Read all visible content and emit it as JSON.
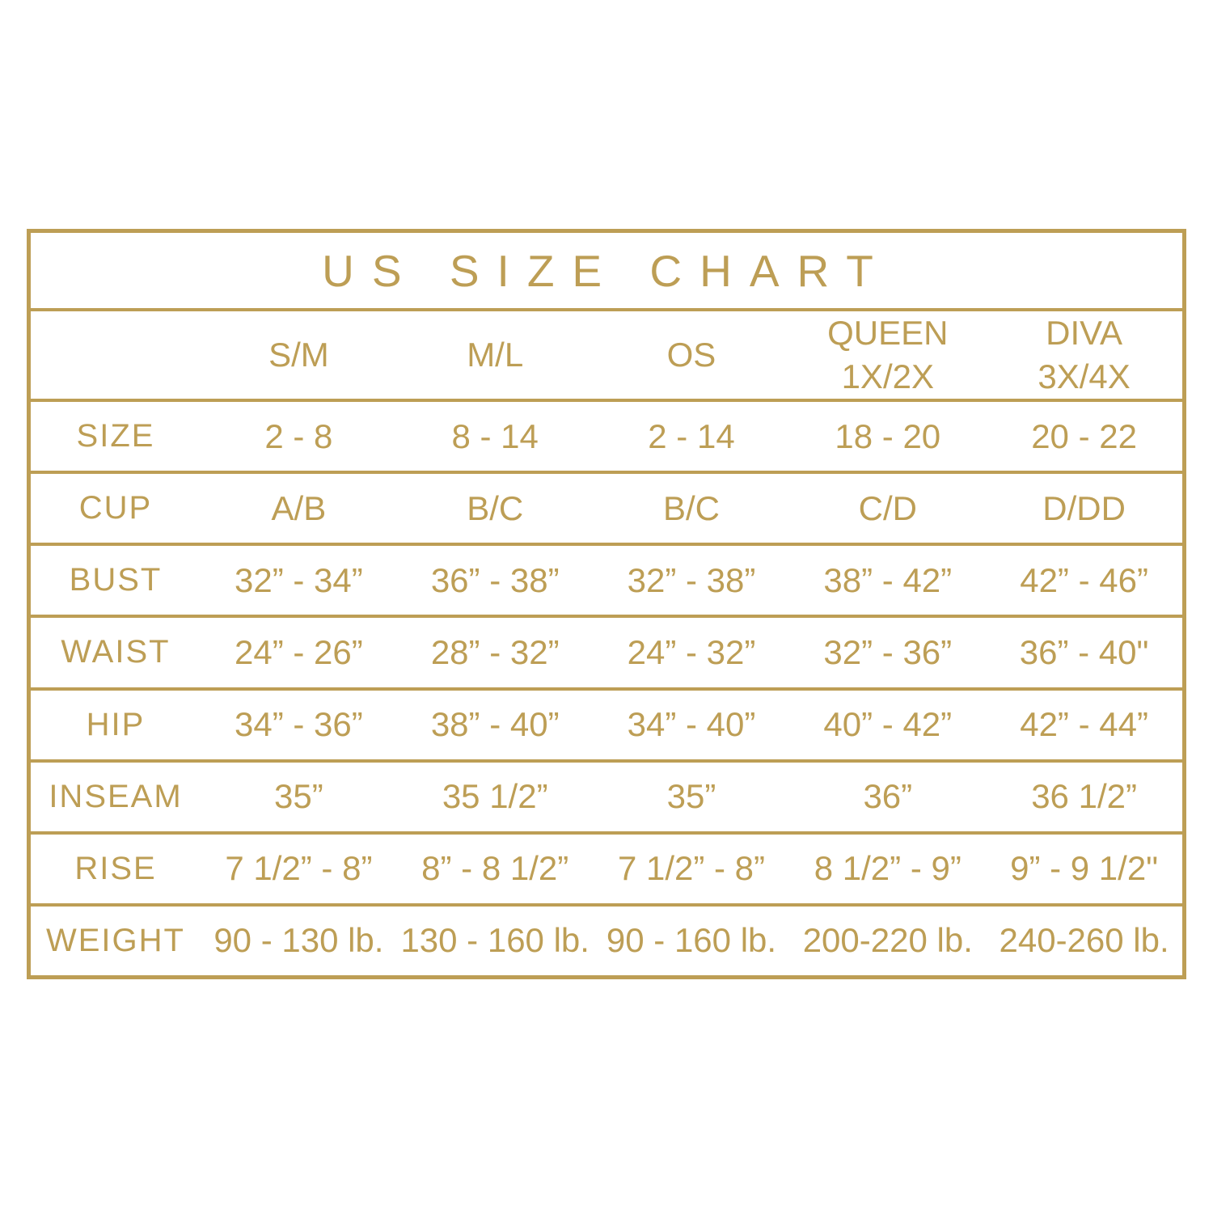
{
  "accent_color": "#BD9E55",
  "background_color": "#FFFFFF",
  "chart_data": {
    "type": "table",
    "title": "US SIZE CHART",
    "columns": [
      {
        "line1": "S/M",
        "line2": ""
      },
      {
        "line1": "M/L",
        "line2": ""
      },
      {
        "line1": "OS",
        "line2": ""
      },
      {
        "line1": "QUEEN",
        "line2": "1X/2X"
      },
      {
        "line1": "DIVA",
        "line2": "3X/4X"
      }
    ],
    "rows": [
      {
        "label": "SIZE",
        "values": [
          "2 - 8",
          "8 - 14",
          "2 - 14",
          "18 - 20",
          "20 - 22"
        ]
      },
      {
        "label": "CUP",
        "values": [
          "A/B",
          "B/C",
          "B/C",
          "C/D",
          "D/DD"
        ]
      },
      {
        "label": "BUST",
        "values": [
          "32” - 34”",
          "36” - 38”",
          "32” - 38”",
          "38” - 42”",
          "42” - 46”"
        ]
      },
      {
        "label": "WAIST",
        "values": [
          "24” - 26”",
          "28” - 32”",
          "24” - 32”",
          "32” - 36”",
          "36” - 40\""
        ]
      },
      {
        "label": "HIP",
        "values": [
          "34” - 36”",
          "38” - 40”",
          "34” - 40”",
          "40” - 42”",
          "42” - 44”"
        ]
      },
      {
        "label": "INSEAM",
        "values": [
          "35”",
          "35 1/2”",
          "35”",
          "36”",
          "36 1/2”"
        ]
      },
      {
        "label": "RISE",
        "values": [
          "7 1/2” - 8”",
          "8” - 8 1/2”",
          "7 1/2” - 8”",
          "8 1/2” - 9”",
          "9” - 9 1/2\""
        ]
      },
      {
        "label": "WEIGHT",
        "values": [
          "90 - 130 lb.",
          "130 - 160 lb.",
          "90 - 160 lb.",
          "200-220 lb.",
          "240-260 lb."
        ]
      }
    ]
  }
}
